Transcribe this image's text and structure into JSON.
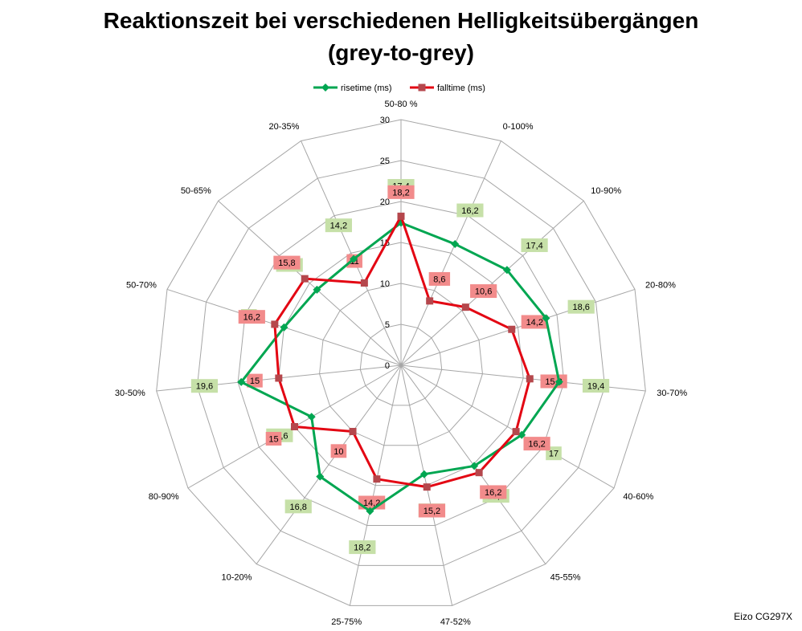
{
  "chart_data": {
    "type": "radar",
    "title_line1": "Reaktionszeit bei verschiedenen Helligkeitsübergängen",
    "title_line2": "(grey-to-grey)",
    "categories": [
      "50-80 %",
      "0-100%",
      "10-90%",
      "20-80%",
      "30-70%",
      "40-60%",
      "45-55%",
      "47-52%",
      "25-75%",
      "10-20%",
      "80-90%",
      "30-50%",
      "50-70%",
      "50-65%",
      "20-35%"
    ],
    "radial_axis": {
      "min": 0,
      "max": 30,
      "ticks": [
        "0",
        "5",
        "10",
        "15",
        "20",
        "25",
        "30"
      ]
    },
    "series": [
      {
        "name": "risetime (ms)",
        "color": "#00a651",
        "marker": "diamond",
        "values": [
          17.4,
          16.2,
          17.4,
          18.6,
          19.4,
          17,
          15.2,
          13.6,
          18.2,
          16.8,
          12.6,
          19.6,
          15,
          13.8,
          14.2
        ],
        "labels": [
          "17,4",
          "16,2",
          "17,4",
          "18,6",
          "19,4",
          "17",
          "15,2",
          "13,6",
          "18,2",
          "16,8",
          "12,6",
          "19,6",
          "15",
          "13,8",
          "14,2"
        ],
        "label_color": "#c6e0a8"
      },
      {
        "name": "falltime (ms)",
        "color": "#e30613",
        "marker": "square",
        "values": [
          18.2,
          8.6,
          10.6,
          14.2,
          15.8,
          16.2,
          16.2,
          15.2,
          14.2,
          10,
          15,
          15,
          16.2,
          15.8,
          11
        ],
        "labels": [
          "18,2",
          "8,6",
          "10,6",
          "14,2",
          "15,8",
          "16,2",
          "16,2",
          "15,2",
          "14,2",
          "10",
          "15",
          "15",
          "16,2",
          "15,8",
          "11"
        ],
        "label_color": "#f28b8b"
      }
    ],
    "legend_position": "top",
    "grid": true
  },
  "footer": {
    "credit": "Eizo CG297X"
  }
}
